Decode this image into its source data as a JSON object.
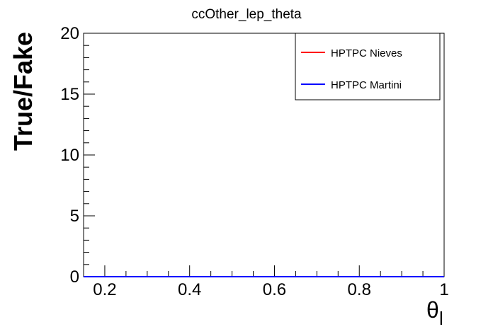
{
  "chart_data": {
    "type": "line",
    "title": "ccOther_lep_theta",
    "xlabel_main": "θ",
    "xlabel_sub": "l",
    "ylabel": "True/Fake",
    "xlim": [
      0.15,
      1.0
    ],
    "ylim": [
      0,
      20
    ],
    "x_ticks": [
      0.2,
      0.4,
      0.6,
      0.8,
      1.0
    ],
    "x_tick_labels": [
      "0.2",
      "0.4",
      "0.6",
      "0.8",
      "1"
    ],
    "y_ticks": [
      0,
      5,
      10,
      15,
      20
    ],
    "y_tick_labels": [
      "0",
      "5",
      "10",
      "15",
      "20"
    ],
    "grid": false,
    "legend_position": "top-right",
    "series": [
      {
        "name": "HPTPC Nieves",
        "color": "#ff0000",
        "x": [
          0.15,
          1.0
        ],
        "y": [
          0,
          0
        ]
      },
      {
        "name": "HPTPC Martini",
        "color": "#0000ff",
        "x": [
          0.15,
          1.0
        ],
        "y": [
          0,
          0
        ]
      }
    ]
  }
}
